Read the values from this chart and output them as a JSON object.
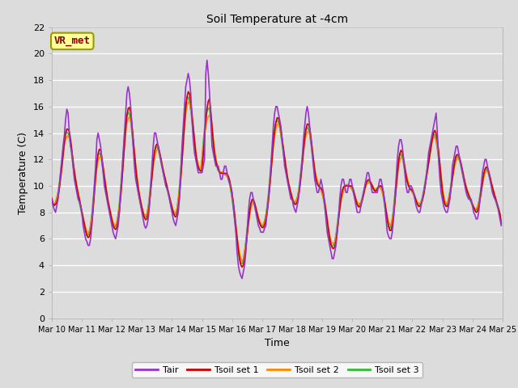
{
  "title": "Soil Temperature at -4cm",
  "xlabel": "Time",
  "ylabel": "Temperature (C)",
  "ylim": [
    0,
    22
  ],
  "yticks": [
    0,
    2,
    4,
    6,
    8,
    10,
    12,
    14,
    16,
    18,
    20,
    22
  ],
  "xtick_labels": [
    "Mar 10",
    "Mar 11",
    "Mar 12",
    "Mar 13",
    "Mar 14",
    "Mar 15",
    "Mar 16",
    "Mar 17",
    "Mar 18",
    "Mar 19",
    "Mar 20",
    "Mar 21",
    "Mar 22",
    "Mar 23",
    "Mar 24",
    "Mar 25"
  ],
  "colors": {
    "Tair": "#9933CC",
    "Tsoil1": "#CC0000",
    "Tsoil2": "#FF8800",
    "Tsoil3": "#33BB33"
  },
  "legend_labels": [
    "Tair",
    "Tsoil set 1",
    "Tsoil set 2",
    "Tsoil set 3"
  ],
  "background_color": "#DCDCDC",
  "plot_bg_color": "#DCDCDC",
  "grid_color": "white",
  "annotation_text": "VR_met",
  "annotation_bg": "#FFFF99",
  "annotation_border": "#999900",
  "tair": [
    9.0,
    8.5,
    8.2,
    8.0,
    8.5,
    9.0,
    10.0,
    11.0,
    12.0,
    13.0,
    13.8,
    15.0,
    15.8,
    15.5,
    14.0,
    13.0,
    12.5,
    11.5,
    10.5,
    10.0,
    9.5,
    9.0,
    8.8,
    8.5,
    8.0,
    7.0,
    6.5,
    6.0,
    5.8,
    5.5,
    5.5,
    6.0,
    7.0,
    8.5,
    10.0,
    11.5,
    13.5,
    14.0,
    13.5,
    13.0,
    12.0,
    11.0,
    10.0,
    9.5,
    9.0,
    8.5,
    8.0,
    7.5,
    7.0,
    6.5,
    6.2,
    6.0,
    6.5,
    7.0,
    8.0,
    9.5,
    11.0,
    12.5,
    14.0,
    15.5,
    17.0,
    17.5,
    17.0,
    16.0,
    14.5,
    13.0,
    11.5,
    10.5,
    10.0,
    9.5,
    9.0,
    8.5,
    8.0,
    7.5,
    7.0,
    6.8,
    7.0,
    7.5,
    8.5,
    10.0,
    11.5,
    13.0,
    14.0,
    14.0,
    13.5,
    13.0,
    12.5,
    12.0,
    11.5,
    11.0,
    10.5,
    10.0,
    9.8,
    9.5,
    9.0,
    8.5,
    8.0,
    7.5,
    7.2,
    7.0,
    7.5,
    8.0,
    9.0,
    11.0,
    13.0,
    14.5,
    16.0,
    17.5,
    18.0,
    18.5,
    18.0,
    17.0,
    15.0,
    13.5,
    12.5,
    12.0,
    11.5,
    11.0,
    11.0,
    11.0,
    11.0,
    11.5,
    12.0,
    18.5,
    19.5,
    18.5,
    17.0,
    15.0,
    13.0,
    12.5,
    12.0,
    11.5,
    11.5,
    11.5,
    11.0,
    10.5,
    10.5,
    11.0,
    11.5,
    11.5,
    11.0,
    10.5,
    10.2,
    10.0,
    9.5,
    8.5,
    7.5,
    6.5,
    5.0,
    4.0,
    3.5,
    3.2,
    3.0,
    3.5,
    4.0,
    5.0,
    6.5,
    8.0,
    9.0,
    9.5,
    9.5,
    9.0,
    8.5,
    8.0,
    7.5,
    7.0,
    6.8,
    6.5,
    6.5,
    6.5,
    6.8,
    7.0,
    8.0,
    9.0,
    10.0,
    11.5,
    13.0,
    14.5,
    15.5,
    16.0,
    16.0,
    15.5,
    15.0,
    14.5,
    13.5,
    12.5,
    11.5,
    11.0,
    10.5,
    10.0,
    9.5,
    9.0,
    9.0,
    8.5,
    8.2,
    8.0,
    8.5,
    9.0,
    10.0,
    11.0,
    12.0,
    13.5,
    14.5,
    15.5,
    16.0,
    15.5,
    14.5,
    13.5,
    12.5,
    11.5,
    10.5,
    10.0,
    9.5,
    9.5,
    10.0,
    10.5,
    10.0,
    9.5,
    8.5,
    7.5,
    6.5,
    6.0,
    5.5,
    5.0,
    4.5,
    4.5,
    5.0,
    5.5,
    6.5,
    7.5,
    9.0,
    10.0,
    10.5,
    10.5,
    10.0,
    9.5,
    9.5,
    10.0,
    10.5,
    10.5,
    10.0,
    9.5,
    9.0,
    8.5,
    8.0,
    8.0,
    8.0,
    8.5,
    9.0,
    9.5,
    10.0,
    10.5,
    11.0,
    11.0,
    10.5,
    10.0,
    9.5,
    9.5,
    9.5,
    9.5,
    9.5,
    10.0,
    10.5,
    10.5,
    10.0,
    9.5,
    8.5,
    7.5,
    6.5,
    6.2,
    6.0,
    6.0,
    6.5,
    7.5,
    9.0,
    10.5,
    12.0,
    13.0,
    13.5,
    13.5,
    13.0,
    12.0,
    11.0,
    10.0,
    9.5,
    9.5,
    10.0,
    10.0,
    9.8,
    9.5,
    9.0,
    8.5,
    8.2,
    8.0,
    8.0,
    8.5,
    9.0,
    9.5,
    10.0,
    10.5,
    11.5,
    12.5,
    13.0,
    13.5,
    14.0,
    14.5,
    15.0,
    15.5,
    14.0,
    12.0,
    10.5,
    9.5,
    9.0,
    8.5,
    8.2,
    8.0,
    8.0,
    8.5,
    9.0,
    10.0,
    11.5,
    12.0,
    12.5,
    13.0,
    13.0,
    12.5,
    12.0,
    11.5,
    11.0,
    10.5,
    10.0,
    9.5,
    9.2,
    9.0,
    9.0,
    9.0,
    8.5,
    8.0,
    7.8,
    7.5,
    7.5,
    8.0,
    9.0,
    10.0,
    11.0,
    11.5,
    12.0,
    12.0,
    11.5,
    11.0,
    10.5,
    10.0,
    9.5,
    9.2,
    9.0,
    8.8,
    8.5,
    8.0,
    7.5,
    7.0
  ]
}
